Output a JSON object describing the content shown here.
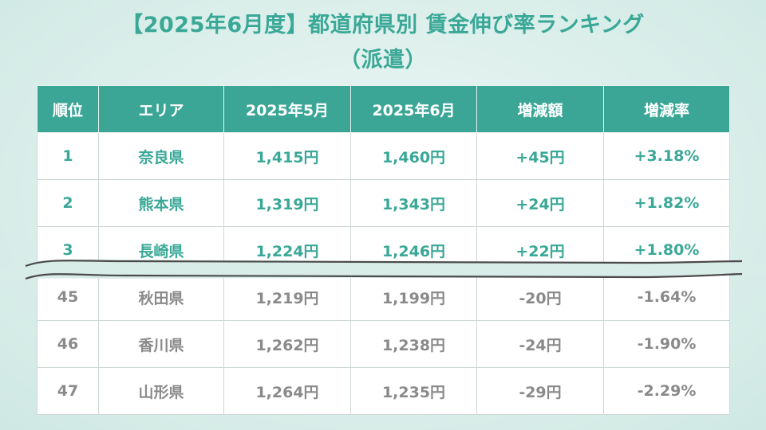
{
  "title": {
    "line1": "【2025年6月度】都道府県別 賃金伸び率ランキング",
    "line2": "（派遣）"
  },
  "table": {
    "headers": [
      "順位",
      "エリア",
      "2025年5月",
      "2025年6月",
      "増減額",
      "増減率"
    ],
    "top_rows": [
      {
        "rank": "1",
        "area": "奈良県",
        "may": "1,415円",
        "jun": "1,460円",
        "diff": "+45円",
        "rate": "+3.18%"
      },
      {
        "rank": "2",
        "area": "熊本県",
        "may": "1,319円",
        "jun": "1,343円",
        "diff": "+24円",
        "rate": "+1.82%"
      },
      {
        "rank": "3",
        "area": "長崎県",
        "may": "1,224円",
        "jun": "1,246円",
        "diff": "+22円",
        "rate": "+1.80%"
      }
    ],
    "bottom_rows": [
      {
        "rank": "45",
        "area": "秋田県",
        "may": "1,219円",
        "jun": "1,199円",
        "diff": "-20円",
        "rate": "-1.64%"
      },
      {
        "rank": "46",
        "area": "香川県",
        "may": "1,262円",
        "jun": "1,238円",
        "diff": "-24円",
        "rate": "-1.90%"
      },
      {
        "rank": "47",
        "area": "山形県",
        "may": "1,264円",
        "jun": "1,235円",
        "diff": "-29円",
        "rate": "-2.29%"
      }
    ]
  },
  "colors": {
    "accent": "#3aa897",
    "header_bg": "#3ba696",
    "bottom_text": "#8a8a8a"
  }
}
